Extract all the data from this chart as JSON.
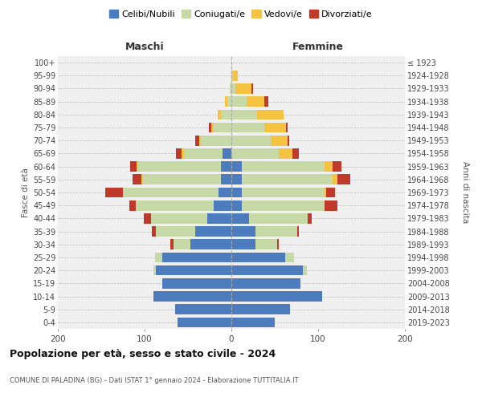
{
  "age_groups": [
    "0-4",
    "5-9",
    "10-14",
    "15-19",
    "20-24",
    "25-29",
    "30-34",
    "35-39",
    "40-44",
    "45-49",
    "50-54",
    "55-59",
    "60-64",
    "65-69",
    "70-74",
    "75-79",
    "80-84",
    "85-89",
    "90-94",
    "95-99",
    "100+"
  ],
  "birth_years": [
    "2019-2023",
    "2014-2018",
    "2009-2013",
    "2004-2008",
    "1999-2003",
    "1994-1998",
    "1989-1993",
    "1984-1988",
    "1979-1983",
    "1974-1978",
    "1969-1973",
    "1964-1968",
    "1959-1963",
    "1954-1958",
    "1949-1953",
    "1944-1948",
    "1939-1943",
    "1934-1938",
    "1929-1933",
    "1924-1928",
    "≤ 1923"
  ],
  "males": {
    "celibi": [
      62,
      65,
      90,
      80,
      87,
      80,
      47,
      42,
      28,
      20,
      15,
      12,
      12,
      10,
      0,
      0,
      0,
      0,
      0,
      0,
      0
    ],
    "coniugati": [
      0,
      0,
      0,
      0,
      3,
      8,
      20,
      45,
      65,
      90,
      110,
      90,
      95,
      45,
      35,
      20,
      12,
      5,
      2,
      0,
      0
    ],
    "vedovi": [
      0,
      0,
      0,
      0,
      0,
      0,
      0,
      0,
      0,
      0,
      0,
      2,
      2,
      2,
      2,
      3,
      4,
      2,
      0,
      0,
      0
    ],
    "divorziati": [
      0,
      0,
      0,
      0,
      0,
      0,
      3,
      5,
      8,
      8,
      20,
      10,
      8,
      7,
      5,
      3,
      0,
      0,
      0,
      0,
      0
    ]
  },
  "females": {
    "nubili": [
      50,
      68,
      105,
      80,
      82,
      62,
      28,
      28,
      20,
      12,
      12,
      12,
      12,
      0,
      0,
      0,
      0,
      0,
      0,
      0,
      0
    ],
    "coniugate": [
      0,
      0,
      0,
      0,
      5,
      10,
      25,
      48,
      68,
      95,
      95,
      105,
      95,
      55,
      45,
      38,
      30,
      18,
      5,
      2,
      0
    ],
    "vedove": [
      0,
      0,
      0,
      0,
      0,
      0,
      0,
      0,
      0,
      0,
      2,
      5,
      10,
      15,
      20,
      25,
      30,
      20,
      18,
      5,
      0
    ],
    "divorziate": [
      0,
      0,
      0,
      0,
      0,
      0,
      2,
      2,
      5,
      15,
      10,
      15,
      10,
      8,
      2,
      2,
      0,
      5,
      2,
      0,
      0
    ]
  },
  "colors": {
    "celibi_nubili": "#4d7cbe",
    "coniugati": "#c8d9a8",
    "vedovi": "#f5c242",
    "divorziati": "#c0392b"
  },
  "title": "Popolazione per età, sesso e stato civile - 2024",
  "subtitle": "COMUNE DI PALADINA (BG) - Dati ISTAT 1° gennaio 2024 - Elaborazione TUTTITALIA.IT",
  "xlabel_left": "Maschi",
  "xlabel_right": "Femmine",
  "ylabel": "Fasce di età",
  "ylabel_right": "Anni di nascita",
  "xlim": 200,
  "legend_labels": [
    "Celibi/Nubili",
    "Coniugati/e",
    "Vedovi/e",
    "Divorziati/e"
  ],
  "bg_color": "#ffffff",
  "plot_bg_color": "#f0f0f0",
  "grid_color": "#bbbbbb"
}
